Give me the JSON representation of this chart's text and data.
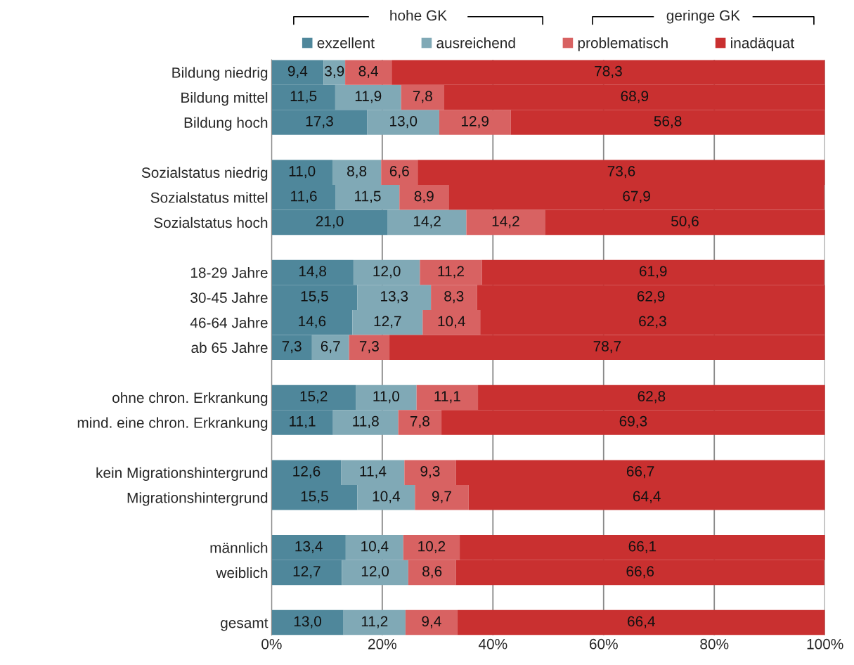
{
  "chart_data": {
    "type": "bar",
    "orientation": "horizontal",
    "stacked": true,
    "categories": [
      "Bildung niedrig",
      "Bildung mittel",
      "Bildung hoch",
      null,
      "Sozialstatus niedrig",
      "Sozialstatus mittel",
      "Sozialstatus hoch",
      null,
      "18-29 Jahre",
      "30-45 Jahre",
      "46-64 Jahre",
      "ab 65 Jahre",
      null,
      "ohne chron. Erkrankung",
      "mind. eine chron. Erkrankung",
      null,
      "kein Migrationshintergrund",
      "Migrationshintergrund",
      null,
      "männlich",
      "weiblich",
      null,
      "gesamt"
    ],
    "series": [
      {
        "name": "exzellent",
        "color": "#4f879b",
        "values": [
          9.4,
          11.5,
          17.3,
          null,
          11.0,
          11.6,
          21.0,
          null,
          14.8,
          15.5,
          14.6,
          7.3,
          null,
          15.2,
          11.1,
          null,
          12.6,
          15.5,
          null,
          13.4,
          12.7,
          null,
          13.0
        ],
        "value_labels": [
          "9,4",
          "11,5",
          "17,3",
          null,
          "11,0",
          "11,6",
          "21,0",
          null,
          "14,8",
          "15,5",
          "14,6",
          "7,3",
          null,
          "15,2",
          "11,1",
          null,
          "12,6",
          "15,5",
          null,
          "13,4",
          "12,7",
          null,
          "13,0"
        ]
      },
      {
        "name": "ausreichend",
        "color": "#80a9b6",
        "values": [
          3.9,
          11.9,
          13.0,
          null,
          8.8,
          11.5,
          14.2,
          null,
          12.0,
          13.3,
          12.7,
          6.7,
          null,
          11.0,
          11.8,
          null,
          11.4,
          10.4,
          null,
          10.4,
          12.0,
          null,
          11.2
        ],
        "value_labels": [
          "3,9",
          "11,9",
          "13,0",
          null,
          "8,8",
          "11,5",
          "14,2",
          null,
          "12,0",
          "13,3",
          "12,7",
          "6,7",
          null,
          "11,0",
          "11,8",
          null,
          "11,4",
          "10,4",
          null,
          "10,4",
          "12,0",
          null,
          "11,2"
        ]
      },
      {
        "name": "problematisch",
        "color": "#d86262",
        "values": [
          8.4,
          7.8,
          12.9,
          null,
          6.6,
          8.9,
          14.2,
          null,
          11.2,
          8.3,
          10.4,
          7.3,
          null,
          11.1,
          7.8,
          null,
          9.3,
          9.7,
          null,
          10.2,
          8.6,
          null,
          9.4
        ],
        "value_labels": [
          "8,4",
          "7,8",
          "12,9",
          null,
          "6,6",
          "8,9",
          "14,2",
          null,
          "11,2",
          "8,3",
          "10,4",
          "7,3",
          null,
          "11,1",
          "7,8",
          null,
          "9,3",
          "9,7",
          null,
          "10,2",
          "8,6",
          null,
          "9,4"
        ]
      },
      {
        "name": "inadäquat",
        "color": "#c93030",
        "values": [
          78.3,
          68.9,
          56.8,
          null,
          73.6,
          67.9,
          50.6,
          null,
          61.9,
          62.9,
          62.3,
          78.7,
          null,
          62.8,
          69.3,
          null,
          66.7,
          64.4,
          null,
          66.1,
          66.6,
          null,
          66.4
        ],
        "value_labels": [
          "78,3",
          "68,9",
          "56,8",
          null,
          "73,6",
          "67,9",
          "50,6",
          null,
          "61,9",
          "62,9",
          "62,3",
          "78,7",
          null,
          "62,8",
          "69,3",
          null,
          "66,7",
          "64,4",
          null,
          "66,1",
          "66,6",
          null,
          "66,4"
        ]
      }
    ],
    "xlim": [
      0,
      100
    ],
    "xticks": [
      {
        "value": 0,
        "label": "0%"
      },
      {
        "value": 20,
        "label": "20%"
      },
      {
        "value": 40,
        "label": "40%"
      },
      {
        "value": 60,
        "label": "60%"
      },
      {
        "value": 80,
        "label": "80%"
      },
      {
        "value": 100,
        "label": "100%"
      }
    ],
    "grid": "x",
    "legend": "top",
    "annotations": [
      "hohe GK",
      "geringe GK"
    ]
  }
}
